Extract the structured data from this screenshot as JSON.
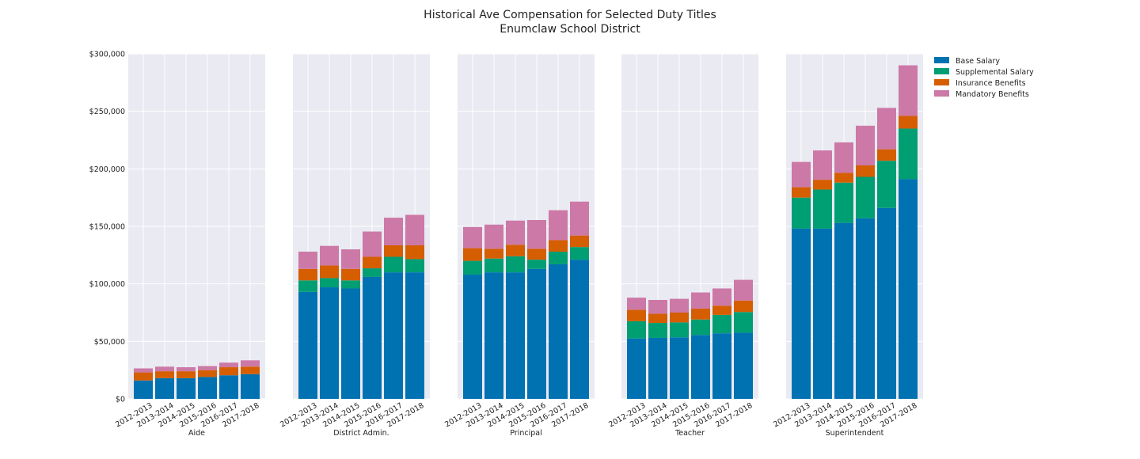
{
  "chart_data": {
    "type": "bar",
    "stacked": true,
    "title": "Historical Ave Compensation for Selected Duty Titles",
    "subtitle": "Enumclaw School District",
    "ylim": [
      0,
      300000
    ],
    "yticks": [
      "$0",
      "$50,000",
      "$100,000",
      "$150,000",
      "$200,000",
      "$250,000",
      "$300,000"
    ],
    "ytick_values": [
      0,
      50000,
      100000,
      150000,
      200000,
      250000,
      300000
    ],
    "grid": true,
    "legend_position": "top-right outside",
    "categories": [
      "2012-2013",
      "2013-2014",
      "2014-2015",
      "2015-2016",
      "2016-2017",
      "2017-2018"
    ],
    "legend": [
      {
        "name": "Base Salary",
        "color": "#0072b2"
      },
      {
        "name": "Supplemental Salary",
        "color": "#009e73"
      },
      {
        "name": "Insurance Benefits",
        "color": "#d55e00"
      },
      {
        "name": "Mandatory Benefits",
        "color": "#cc79a7"
      }
    ],
    "panels": [
      {
        "xlabel": "Aide",
        "series": [
          {
            "name": "Base Salary",
            "values": [
              16000,
              18000,
              18000,
              19000,
              20500,
              21500
            ]
          },
          {
            "name": "Supplemental Salary",
            "values": [
              0,
              0,
              0,
              0,
              0,
              0
            ]
          },
          {
            "name": "Insurance Benefits",
            "values": [
              7000,
              6000,
              6000,
              6000,
              7000,
              6500
            ]
          },
          {
            "name": "Mandatory Benefits",
            "values": [
              3500,
              4000,
              3500,
              3500,
              4000,
              5500
            ]
          }
        ]
      },
      {
        "xlabel": "District Admin.",
        "series": [
          {
            "name": "Base Salary",
            "values": [
              93000,
              97000,
              96000,
              106000,
              110000,
              110000
            ]
          },
          {
            "name": "Supplemental Salary",
            "values": [
              10000,
              8000,
              7000,
              7500,
              13500,
              11500
            ]
          },
          {
            "name": "Insurance Benefits",
            "values": [
              10000,
              11000,
              10000,
              10000,
              10000,
              12000
            ]
          },
          {
            "name": "Mandatory Benefits",
            "values": [
              15000,
              17000,
              17000,
              22000,
              24000,
              26500
            ]
          }
        ]
      },
      {
        "xlabel": "Principal",
        "series": [
          {
            "name": "Base Salary",
            "values": [
              108000,
              110000,
              110000,
              113000,
              117000,
              121000
            ]
          },
          {
            "name": "Supplemental Salary",
            "values": [
              12000,
              12000,
              14000,
              8000,
              11000,
              11000
            ]
          },
          {
            "name": "Insurance Benefits",
            "values": [
              11000,
              8500,
              10000,
              9500,
              10000,
              10000
            ]
          },
          {
            "name": "Mandatory Benefits",
            "values": [
              18500,
              21000,
              21000,
              25000,
              26000,
              29500
            ]
          }
        ]
      },
      {
        "xlabel": "Teacher",
        "series": [
          {
            "name": "Base Salary",
            "values": [
              52500,
              53000,
              53500,
              55500,
              57000,
              57500
            ]
          },
          {
            "name": "Supplemental Salary",
            "values": [
              15000,
              13000,
              13000,
              13500,
              16000,
              18000
            ]
          },
          {
            "name": "Insurance Benefits",
            "values": [
              10000,
              8000,
              8500,
              9500,
              8000,
              10000
            ]
          },
          {
            "name": "Mandatory Benefits",
            "values": [
              10500,
              12000,
              12000,
              14000,
              15000,
              18000
            ]
          }
        ]
      },
      {
        "xlabel": "Superintendent",
        "series": [
          {
            "name": "Base Salary",
            "values": [
              148000,
              148000,
              153000,
              157000,
              166000,
              191000
            ]
          },
          {
            "name": "Supplemental Salary",
            "values": [
              27000,
              34000,
              35000,
              36000,
              41000,
              44000
            ]
          },
          {
            "name": "Insurance Benefits",
            "values": [
              9000,
              8500,
              8500,
              10000,
              10000,
              11000
            ]
          },
          {
            "name": "Mandatory Benefits",
            "values": [
              22000,
              25500,
              26500,
              34500,
              36000,
              44000
            ]
          }
        ]
      }
    ]
  }
}
